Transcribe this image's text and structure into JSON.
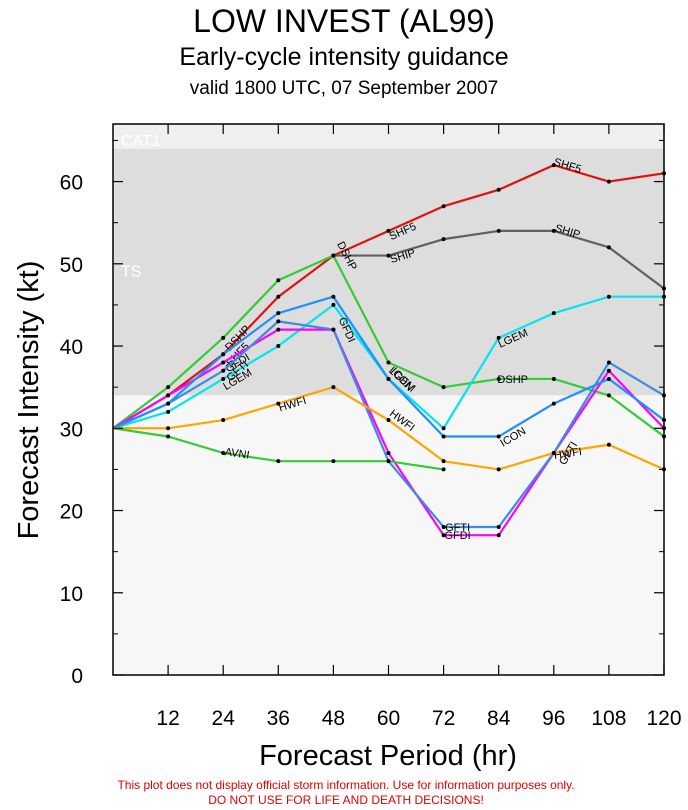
{
  "header": {
    "title": "LOW INVEST (AL99)",
    "subtitle": "Early-cycle intensity guidance",
    "valid": "valid 1800 UTC, 07 September 2007"
  },
  "footer": {
    "line1": "This plot does not display official storm information. Use for information purposes only.",
    "line2": "DO NOT USE FOR LIFE AND DEATH DECISIONS!"
  },
  "colors": {
    "footer": "#e00000",
    "band_ts": "#dddddd",
    "band_cat1": "#efefef",
    "band_low": "#f7f7f7"
  },
  "chart_data": {
    "type": "line",
    "xlabel": "Forecast Period (hr)",
    "ylabel": "Forecast Intensity (kt)",
    "xlim": [
      0,
      120
    ],
    "ylim": [
      0,
      67
    ],
    "xticks": [
      12,
      24,
      36,
      48,
      60,
      72,
      84,
      96,
      108,
      120
    ],
    "yticks": [
      0,
      10,
      20,
      30,
      40,
      50,
      60
    ],
    "bands": [
      {
        "label": "TS",
        "from": 34,
        "to": 64
      },
      {
        "label": "CAT1",
        "from": 64,
        "to": 67
      }
    ],
    "series": [
      {
        "name": "SHF5",
        "color": "#e01010",
        "x": [
          0,
          12,
          24,
          36,
          48,
          60,
          72,
          84,
          96,
          108,
          120
        ],
        "y": [
          30,
          34,
          39,
          46,
          51,
          54,
          57,
          59,
          62,
          60,
          61
        ],
        "labels_at": [
          24,
          60,
          96
        ]
      },
      {
        "name": "SHIP",
        "color": "#606060",
        "x": [
          48,
          60,
          72,
          84,
          96,
          108,
          120
        ],
        "y": [
          51,
          51,
          53,
          54,
          54,
          52,
          47
        ],
        "labels_at": [
          60,
          96
        ]
      },
      {
        "name": "DSHP",
        "color": "#33cc33",
        "x": [
          0,
          12,
          24,
          36,
          48,
          60,
          72,
          84,
          96,
          108,
          120
        ],
        "y": [
          30,
          35,
          41,
          48,
          51,
          38,
          35,
          36,
          36,
          34,
          29
        ],
        "labels_at": [
          24,
          48,
          84
        ]
      },
      {
        "name": "LGEM",
        "color": "#00e5ee",
        "x": [
          0,
          12,
          24,
          36,
          48,
          60,
          72,
          84,
          96,
          108,
          120
        ],
        "y": [
          30,
          32,
          36,
          40,
          45,
          36,
          30,
          41,
          44,
          46,
          46
        ],
        "labels_at": [
          24,
          60,
          84
        ]
      },
      {
        "name": "GFDI",
        "color": "#ff00ff",
        "x": [
          0,
          12,
          24,
          36,
          48,
          60,
          72,
          84,
          96,
          108,
          120
        ],
        "y": [
          30,
          34,
          38,
          42,
          42,
          27,
          17,
          17,
          27,
          37,
          30
        ],
        "labels_at": [
          24,
          48,
          72
        ]
      },
      {
        "name": "GFTI",
        "color": "#3b8de0",
        "x": [
          0,
          12,
          24,
          36,
          48,
          60,
          72,
          84,
          96,
          108,
          120
        ],
        "y": [
          30,
          33,
          37,
          43,
          42,
          26,
          18,
          18,
          27,
          38,
          34
        ],
        "labels_at": [
          24,
          72,
          96
        ]
      },
      {
        "name": "ICON",
        "color": "#1e90ff",
        "x": [
          0,
          12,
          24,
          36,
          48,
          60,
          72,
          84,
          96,
          108,
          120
        ],
        "y": [
          30,
          33,
          39,
          44,
          46,
          36,
          29,
          29,
          33,
          36,
          31
        ],
        "labels_at": [
          60,
          84
        ]
      },
      {
        "name": "HWFI",
        "color": "#ffa500",
        "x": [
          0,
          12,
          24,
          36,
          48,
          60,
          72,
          84,
          96,
          108,
          120
        ],
        "y": [
          30,
          30,
          31,
          33,
          35,
          31,
          26,
          25,
          27,
          28,
          25
        ],
        "labels_at": [
          36,
          60,
          96
        ]
      },
      {
        "name": "AVNI",
        "color": "#33cc33",
        "x": [
          0,
          12,
          24,
          36,
          48,
          60,
          72
        ],
        "y": [
          30,
          29,
          27,
          26,
          26,
          26,
          25
        ],
        "labels_at": [
          24
        ]
      }
    ]
  }
}
